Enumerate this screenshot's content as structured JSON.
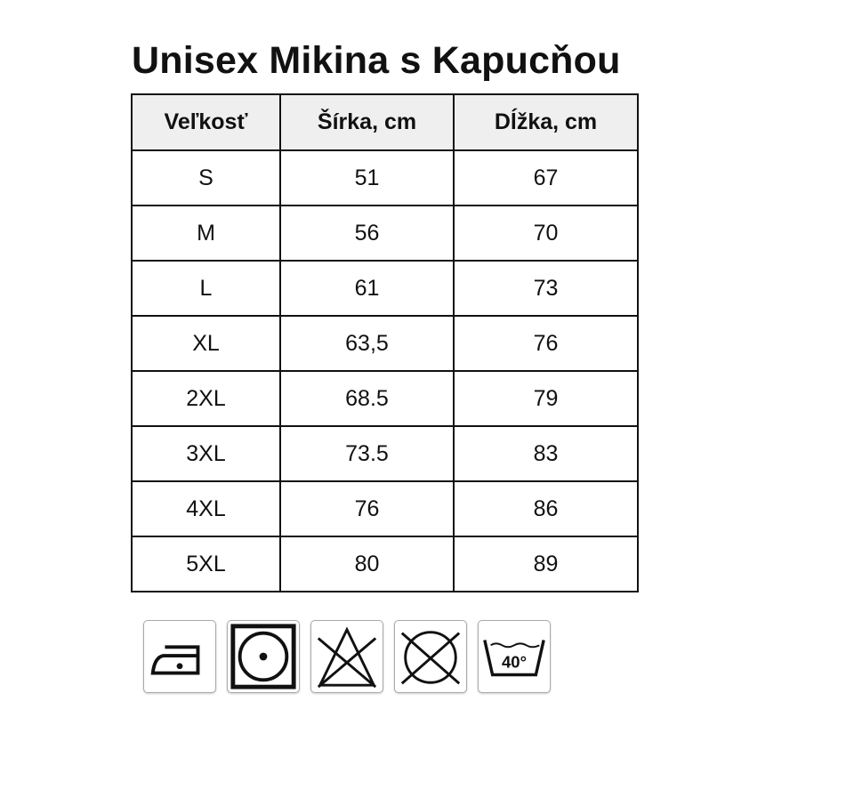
{
  "title": "Unisex Mikina s Kapucňou",
  "table": {
    "headers": [
      "Veľkosť",
      "Šírka, cm",
      "Dĺžka, cm"
    ],
    "rows": [
      [
        "S",
        "51",
        "67"
      ],
      [
        "M",
        "56",
        "70"
      ],
      [
        "L",
        "61",
        "73"
      ],
      [
        "XL",
        "63,5",
        "76"
      ],
      [
        "2XL",
        "68.5",
        "79"
      ],
      [
        "3XL",
        "73.5",
        "83"
      ],
      [
        "4XL",
        "76",
        "86"
      ],
      [
        "5XL",
        "80",
        "89"
      ]
    ]
  },
  "care_icons": [
    "iron-low-icon",
    "tumble-dry-icon",
    "no-bleach-icon",
    "no-dry-clean-icon",
    "wash-40-icon"
  ],
  "wash_temp": "40°"
}
